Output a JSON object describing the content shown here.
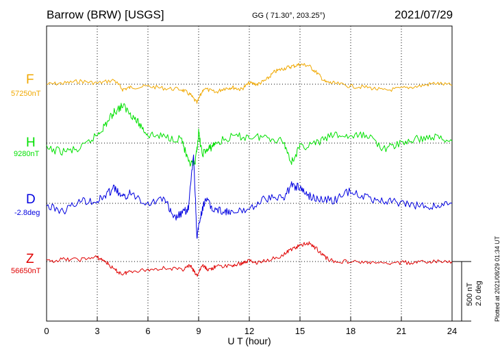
{
  "header": {
    "title": "Barrow (BRW)  [USGS]",
    "coords": "GG ( 71.30°, 203.25°)",
    "date": "2021/07/29"
  },
  "plotted_note": "Plotted at 2021/08/29 01:34  UT",
  "scale": {
    "nt": "500 nT",
    "deg": "2.0 deg"
  },
  "chart_data": {
    "type": "line",
    "xlabel": "U T (hour)",
    "xlim": [
      0,
      24
    ],
    "xticks": [
      "0",
      "3",
      "6",
      "9",
      "12",
      "15",
      "18",
      "21",
      "24"
    ],
    "grid": true,
    "series": [
      {
        "name": "F",
        "baseline": "57250nT",
        "color": "#f0a800",
        "x": [
          0,
          1,
          2,
          3,
          4,
          4.5,
          5,
          6,
          7,
          8,
          8.5,
          8.9,
          9.3,
          10,
          10.5,
          11,
          11.5,
          12,
          12.5,
          13,
          13.5,
          14,
          14.5,
          15,
          15.5,
          16,
          16.5,
          17,
          18,
          19,
          20,
          21,
          22,
          23,
          24
        ],
        "y": [
          0,
          10,
          30,
          10,
          40,
          -50,
          -30,
          -20,
          -40,
          -50,
          -100,
          -180,
          -40,
          -80,
          -40,
          -30,
          -50,
          10,
          0,
          40,
          120,
          150,
          170,
          190,
          180,
          110,
          20,
          10,
          -20,
          -30,
          -60,
          -40,
          -20,
          10,
          -10
        ]
      },
      {
        "name": "H",
        "baseline": "9280nT",
        "color": "#00e000",
        "x": [
          0,
          1,
          2,
          3,
          3.5,
          4,
          4.5,
          5,
          5.5,
          6,
          7,
          8,
          8.4,
          8.8,
          9,
          9.2,
          9.6,
          10,
          11,
          12,
          13,
          14,
          14.5,
          15,
          16,
          17,
          18,
          19,
          20,
          21,
          22,
          23,
          24
        ],
        "y": [
          -60,
          -80,
          -60,
          80,
          180,
          300,
          360,
          280,
          180,
          80,
          60,
          40,
          -200,
          -200,
          100,
          -100,
          -60,
          0,
          60,
          60,
          60,
          20,
          -180,
          -40,
          0,
          80,
          60,
          80,
          -60,
          0,
          40,
          60,
          20
        ]
      },
      {
        "name": "D",
        "baseline": "-2.8deg",
        "color": "#0000e0",
        "x": [
          0,
          1,
          2,
          3,
          3.5,
          4,
          4.5,
          5,
          6,
          7,
          7.5,
          8,
          8.4,
          8.7,
          8.9,
          9.1,
          9.4,
          9.8,
          10.5,
          11,
          12,
          13,
          14,
          14.5,
          15,
          15.5,
          16,
          17,
          18,
          19,
          20,
          21,
          22,
          23,
          24
        ],
        "y": [
          -0.1,
          -0.3,
          0.1,
          0.1,
          0.3,
          0.6,
          0.2,
          0.4,
          0.0,
          0.2,
          -0.6,
          -0.4,
          -0.2,
          1.9,
          -1.3,
          -0.6,
          0.2,
          -0.2,
          -0.3,
          -0.4,
          -0.2,
          0.2,
          0.2,
          0.7,
          0.6,
          0.3,
          0.2,
          0.1,
          0.5,
          0.2,
          0.1,
          0.0,
          -0.1,
          -0.1,
          0.0
        ]
      },
      {
        "name": "Z",
        "baseline": "56650nT",
        "color": "#e00000",
        "x": [
          0,
          1,
          2,
          3,
          3.5,
          4,
          4.5,
          5,
          6,
          7,
          8,
          8.5,
          8.9,
          9.2,
          9.6,
          10,
          11,
          11.5,
          12,
          12.5,
          13,
          14,
          14.5,
          15,
          15.5,
          16,
          16.5,
          17,
          18,
          19,
          20,
          21,
          22,
          23,
          24
        ],
        "y": [
          0,
          20,
          20,
          40,
          0,
          -80,
          -120,
          -90,
          -80,
          -60,
          -80,
          -40,
          -140,
          -40,
          -80,
          -50,
          -40,
          -20,
          10,
          -10,
          10,
          60,
          120,
          150,
          180,
          120,
          40,
          0,
          0,
          -10,
          -20,
          -10,
          -10,
          0,
          0
        ]
      }
    ]
  }
}
